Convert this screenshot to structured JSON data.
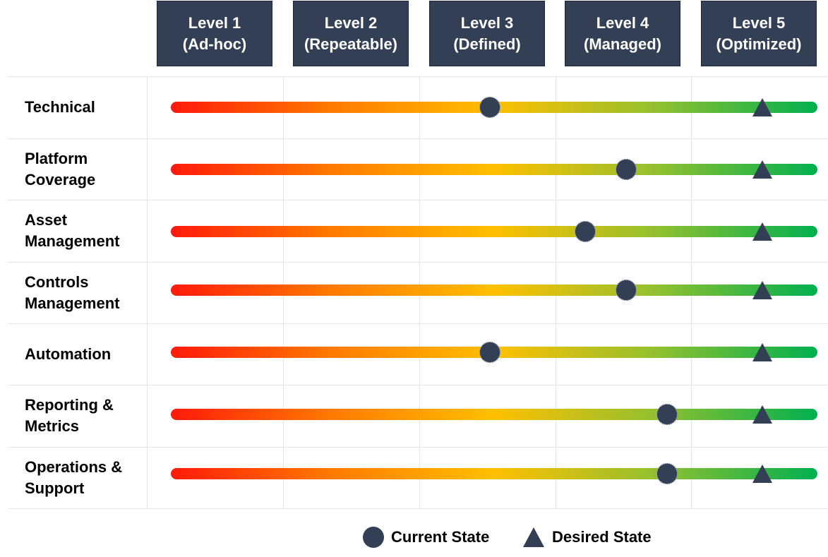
{
  "levels": [
    {
      "line1": "Level 1",
      "line2": "(Ad-hoc)"
    },
    {
      "line1": "Level 2",
      "line2": "(Repeatable)"
    },
    {
      "line1": "Level 3",
      "line2": "(Defined)"
    },
    {
      "line1": "Level 4",
      "line2": "(Managed)"
    },
    {
      "line1": "Level 5",
      "line2": "(Optimized)"
    }
  ],
  "scale": {
    "min": 1,
    "max": 5
  },
  "rows": [
    {
      "label": [
        "Technical"
      ],
      "current": 3.0,
      "desired": 5.0
    },
    {
      "label": [
        "Platform",
        "Coverage"
      ],
      "current": 4.0,
      "desired": 5.0
    },
    {
      "label": [
        "Asset",
        "Management"
      ],
      "current": 3.7,
      "desired": 5.0
    },
    {
      "label": [
        "Controls",
        "Management"
      ],
      "current": 4.0,
      "desired": 5.0
    },
    {
      "label": [
        "Automation"
      ],
      "current": 3.0,
      "desired": 5.0
    },
    {
      "label": [
        "Reporting &",
        "Metrics"
      ],
      "current": 4.3,
      "desired": 5.0
    },
    {
      "label": [
        "Operations &",
        "Support"
      ],
      "current": 4.3,
      "desired": 5.0
    }
  ],
  "legend": {
    "current": "Current State",
    "desired": "Desired State"
  },
  "colors": {
    "marker": "#333f55",
    "header_bg": "#333f55",
    "track_start": "#ff1a0a",
    "track_mid": "#ffc000",
    "track_end": "#00b050"
  }
}
